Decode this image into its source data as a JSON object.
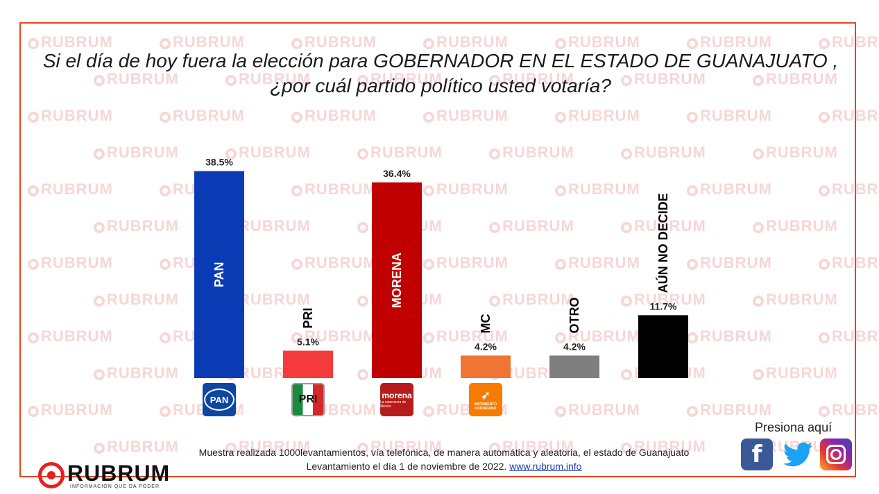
{
  "title": "Si el día de hoy fuera la elección para GOBERNADOR EN EL ESTADO  DE GUANAJUATO , ¿por cuál  partido político usted votaría?",
  "watermark_text": "RUBRUM",
  "chart_data": {
    "type": "bar",
    "title": "Si el día de hoy fuera la elección para GOBERNADOR EN EL ESTADO  DE GUANAJUATO , ¿por cuál  partido político usted votaría?",
    "categories": [
      "PAN",
      "PRI",
      "MORENA",
      "MC",
      "OTRO",
      "AÚN NO DECIDE"
    ],
    "values": [
      38.5,
      5.1,
      36.4,
      4.2,
      4.2,
      11.7
    ],
    "value_labels": [
      "38.5%",
      "5.1%",
      "36.4%",
      "4.2%",
      "4.2%",
      "11.7%"
    ],
    "colors": [
      "#0a3bb5",
      "#f53b3b",
      "#c00000",
      "#ee7533",
      "#7f7f7f",
      "#000000"
    ],
    "category_label_inside_bar": [
      true,
      false,
      true,
      false,
      false,
      false
    ],
    "xlabel": "",
    "ylabel": "",
    "ylim": [
      0,
      40
    ],
    "grid": false,
    "legend": "none"
  },
  "logos": {
    "pan": "PAN",
    "pri": "PRI",
    "morena": "morena",
    "morena_sub": "La esperanza de México",
    "mc": "MOVIMIENTO",
    "mc_sub": "CIUDADANO"
  },
  "footer": {
    "line1": "Muestra realizada 1000levantamientos, vía telefónica, de manera automática y aleatoria, el estado de Guanajuato",
    "line2_prefix": "Levantamiento el día 1 de noviembre de 2022.  ",
    "link": "www.rubrum.info"
  },
  "brand": {
    "name": "RUBRUM",
    "tagline": "INFORMACIÓN QUE DA PODER"
  },
  "social": {
    "label": "Presiona aquí",
    "facebook_icon": "facebook-icon",
    "twitter_icon": "twitter-icon",
    "instagram_icon": "instagram-icon"
  },
  "colors": {
    "frame": "#e8451c",
    "watermark": "#f7d6d6",
    "brand_red": "#e62020"
  }
}
